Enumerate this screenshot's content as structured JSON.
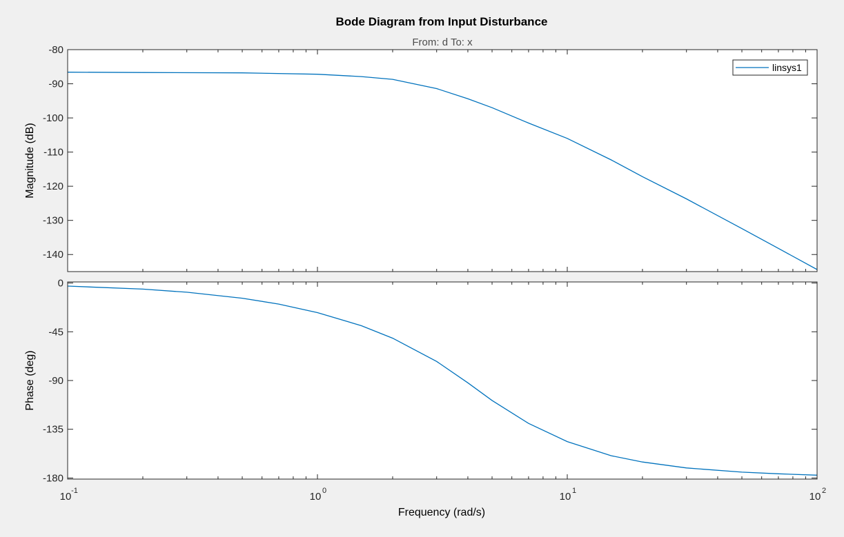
{
  "title": "Bode Diagram from Input Disturbance",
  "subtitle": "From: d  To: x",
  "xlabel": "Frequency  (rad/s)",
  "colors": {
    "line": "#0072bd",
    "axes": "#262626",
    "grid": "#bdbdbd",
    "figure_bg": "#f0f0f0",
    "axes_bg": "#ffffff"
  },
  "chart_data": [
    {
      "type": "line",
      "panel": "magnitude",
      "ylabel": "Magnitude (dB)",
      "xscale": "log",
      "xlim": [
        0.1,
        100
      ],
      "ylim": [
        -145,
        -80
      ],
      "yticks": [
        -80,
        -90,
        -100,
        -110,
        -120,
        -130,
        -140
      ],
      "ytick_labels": [
        "-80",
        "-90",
        "-100",
        "-110",
        "-120",
        "-130",
        "-140"
      ],
      "legend": {
        "entries": [
          "linsys1"
        ],
        "location": "top-right"
      },
      "series": [
        {
          "name": "linsys1",
          "x": [
            0.1,
            0.2,
            0.5,
            1,
            1.5,
            2,
            3,
            4,
            5,
            7,
            10,
            15,
            20,
            30,
            50,
            70,
            100
          ],
          "y": [
            -86.6,
            -86.7,
            -86.8,
            -87.2,
            -87.9,
            -88.7,
            -91.4,
            -94.4,
            -97.0,
            -101.5,
            -106.0,
            -112.3,
            -117.2,
            -123.7,
            -132.4,
            -138.2,
            -144.4
          ]
        }
      ]
    },
    {
      "type": "line",
      "panel": "phase",
      "ylabel": "Phase (deg)",
      "xscale": "log",
      "xlim": [
        0.1,
        100
      ],
      "ylim": [
        -181,
        1
      ],
      "yticks": [
        0,
        -45,
        -90,
        -135,
        -180
      ],
      "ytick_labels": [
        "0",
        "-45",
        "-90",
        "-135",
        "-180"
      ],
      "xticks": [
        0.1,
        1,
        10,
        100
      ],
      "xtick_labels": [
        {
          "base": "10",
          "exp": "-1"
        },
        {
          "base": "10",
          "exp": "0"
        },
        {
          "base": "10",
          "exp": "1"
        },
        {
          "base": "10",
          "exp": "2"
        }
      ],
      "series": [
        {
          "name": "linsys1",
          "x": [
            0.1,
            0.2,
            0.3,
            0.5,
            0.7,
            1,
            1.5,
            2,
            3,
            4,
            5,
            7,
            10,
            15,
            20,
            30,
            50,
            70,
            100
          ],
          "y": [
            -2.8,
            -5.6,
            -8.5,
            -14.0,
            -19.4,
            -27.3,
            -39.4,
            -50.9,
            -72.4,
            -92.1,
            -108.4,
            -129.6,
            -146.4,
            -159.4,
            -165.2,
            -170.7,
            -174.6,
            -176.1,
            -177.4
          ]
        }
      ]
    }
  ]
}
